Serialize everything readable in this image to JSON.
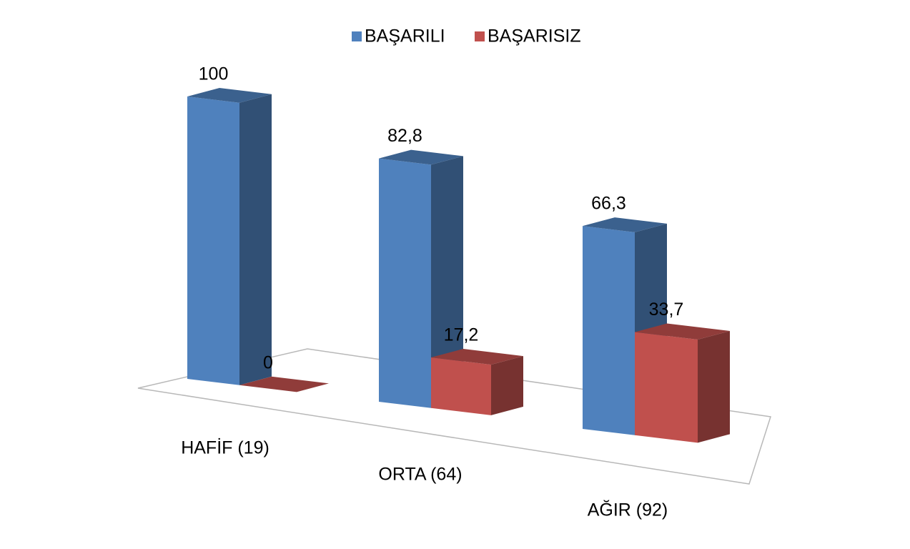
{
  "chart_data": {
    "type": "bar3d",
    "categories": [
      "HAFİF (19)",
      "ORTA (64)",
      "AĞIR (92)"
    ],
    "series": [
      {
        "name": "BAŞARILI",
        "color": "#4f81bd",
        "values": [
          100,
          82.8,
          66.3
        ],
        "value_labels": [
          "100",
          "82,8",
          "66,3"
        ]
      },
      {
        "name": "BAŞARISIZ",
        "color": "#c0504d",
        "values": [
          0,
          17.2,
          33.7
        ],
        "value_labels": [
          "0",
          "17,2",
          "33,7"
        ]
      }
    ],
    "legend": "top"
  }
}
